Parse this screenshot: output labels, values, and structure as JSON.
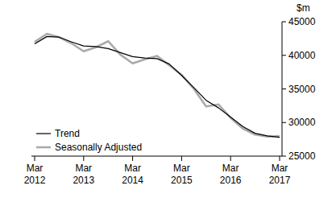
{
  "chart_data": {
    "type": "line",
    "y_label": "$m",
    "categories": [
      "Mar 2012",
      null,
      null,
      null,
      "Mar 2013",
      null,
      null,
      null,
      "Mar 2014",
      null,
      null,
      null,
      "Mar 2015",
      null,
      null,
      null,
      "Mar 2016",
      null,
      null,
      null,
      "Mar 2017"
    ],
    "series": [
      {
        "name": "Trend",
        "color": "#000000",
        "values": [
          41700,
          42800,
          42700,
          42000,
          41400,
          41300,
          41000,
          40400,
          39800,
          39600,
          39500,
          38700,
          37000,
          35200,
          33300,
          32200,
          30800,
          29400,
          28400,
          28000,
          27800
        ]
      },
      {
        "name": "Seasonally Adjusted",
        "color": "#aaaaaa",
        "values": [
          42000,
          43200,
          42700,
          41800,
          40600,
          41200,
          42100,
          40100,
          38800,
          39400,
          39900,
          38500,
          37100,
          35000,
          32400,
          32700,
          30700,
          29100,
          28200,
          27900,
          28000
        ]
      }
    ],
    "ylim": [
      25000,
      45000
    ],
    "yticks": [
      25000,
      30000,
      35000,
      40000,
      45000
    ],
    "grid": false,
    "legend": "lower left"
  }
}
